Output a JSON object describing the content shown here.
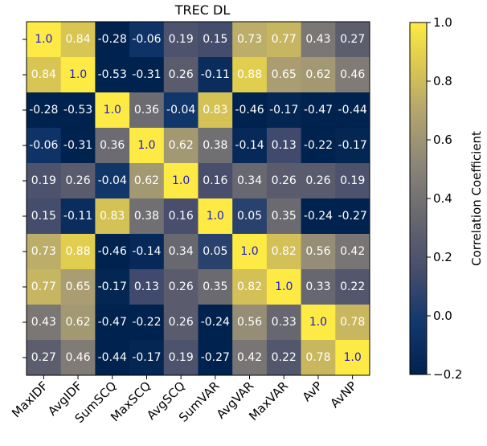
{
  "chart_data": {
    "type": "heatmap",
    "title": "TREC DL",
    "labels": [
      "MaxIDF",
      "AvgIDF",
      "SumSCQ",
      "MaxSCQ",
      "AvgSCQ",
      "SumVAR",
      "AvgVAR",
      "MaxVAR",
      "AvP",
      "AvNP"
    ],
    "matrix": [
      [
        1.0,
        0.84,
        -0.28,
        -0.06,
        0.19,
        0.15,
        0.73,
        0.77,
        0.43,
        0.27
      ],
      [
        0.84,
        1.0,
        -0.53,
        -0.31,
        0.26,
        -0.11,
        0.88,
        0.65,
        0.62,
        0.46
      ],
      [
        -0.28,
        -0.53,
        1.0,
        0.36,
        -0.04,
        0.83,
        -0.46,
        -0.17,
        -0.47,
        -0.44
      ],
      [
        -0.06,
        -0.31,
        0.36,
        1.0,
        0.62,
        0.38,
        -0.14,
        0.13,
        -0.22,
        -0.17
      ],
      [
        0.19,
        0.26,
        -0.04,
        0.62,
        1.0,
        0.16,
        0.34,
        0.26,
        0.26,
        0.19
      ],
      [
        0.15,
        -0.11,
        0.83,
        0.38,
        0.16,
        1.0,
        0.05,
        0.35,
        -0.24,
        -0.27
      ],
      [
        0.73,
        0.88,
        -0.46,
        -0.14,
        0.34,
        0.05,
        1.0,
        0.82,
        0.56,
        0.42
      ],
      [
        0.77,
        0.65,
        -0.17,
        0.13,
        0.26,
        0.35,
        0.82,
        1.0,
        0.33,
        0.22
      ],
      [
        0.43,
        0.62,
        -0.47,
        -0.22,
        0.26,
        -0.24,
        0.56,
        0.33,
        1.0,
        0.78
      ],
      [
        0.27,
        0.46,
        -0.44,
        -0.17,
        0.19,
        -0.27,
        0.42,
        0.22,
        0.78,
        1.0
      ]
    ],
    "display_text": [
      [
        "1.0",
        "0.84",
        "-0.28",
        "-0.06",
        "0.19",
        "0.15",
        "0.73",
        "0.77",
        "0.43",
        "0.27"
      ],
      [
        "0.84",
        "1.0",
        "-0.53",
        "-0.31",
        "0.26",
        "-0.11",
        "0.88",
        "0.65",
        "0.62",
        "0.46"
      ],
      [
        "-0.28",
        "-0.53",
        "1.0",
        "0.36",
        "-0.04",
        "0.83",
        "-0.46",
        "-0.17",
        "-0.47",
        "-0.44"
      ],
      [
        "-0.06",
        "-0.31",
        "0.36",
        "1.0",
        "0.62",
        "0.38",
        "-0.14",
        "0.13",
        "-0.22",
        "-0.17"
      ],
      [
        "0.19",
        "0.26",
        "-0.04",
        "0.62",
        "1.0",
        "0.16",
        "0.34",
        "0.26",
        "0.26",
        "0.19"
      ],
      [
        "0.15",
        "-0.11",
        "0.83",
        "0.38",
        "0.16",
        "1.0",
        "0.05",
        "0.35",
        "-0.24",
        "-0.27"
      ],
      [
        "0.73",
        "0.88",
        "-0.46",
        "-0.14",
        "0.34",
        "0.05",
        "1.0",
        "0.82",
        "0.56",
        "0.42"
      ],
      [
        "0.77",
        "0.65",
        "-0.17",
        "0.13",
        "0.26",
        "0.35",
        "0.82",
        "1.0",
        "0.33",
        "0.22"
      ],
      [
        "0.43",
        "0.62",
        "-0.47",
        "-0.22",
        "0.26",
        "-0.24",
        "0.56",
        "0.33",
        "1.0",
        "0.78"
      ],
      [
        "0.27",
        "0.46",
        "-0.44",
        "-0.17",
        "0.19",
        "-0.27",
        "0.42",
        "0.22",
        "0.78",
        "1.0"
      ]
    ],
    "vmin": -0.2,
    "vmax": 1.0,
    "colormap": "cividis",
    "colorbar": {
      "label": "Correlation Coefficient",
      "ticks": [
        -0.2,
        0.0,
        0.2,
        0.4,
        0.6,
        0.8,
        1.0
      ],
      "tick_labels": [
        "−0.2",
        "0.0",
        "0.2",
        "0.4",
        "0.6",
        "0.8",
        "1.0"
      ]
    },
    "text_colors": {
      "diagonal": "#1a1ad8",
      "default": "#ffffff"
    }
  }
}
